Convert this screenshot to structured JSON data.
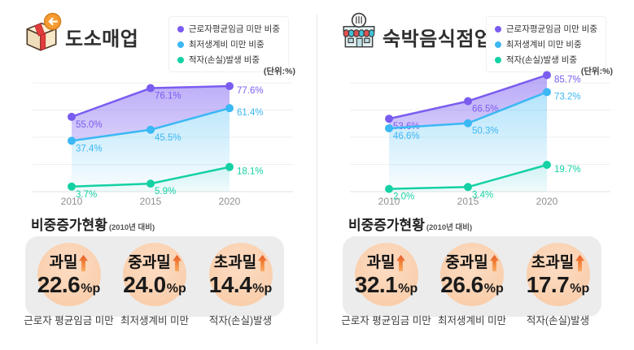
{
  "unit_label": "(단위:%)",
  "colors": {
    "purple": "#7b5cf0",
    "blue": "#3bb8f5",
    "green": "#14d1a4",
    "stat_circle_peach": "#fad2b2",
    "arrow_orange": "#e85a2c",
    "stats_box_gray": "#ececec"
  },
  "legend": [
    {
      "label": "근로자평균임금 미만 비중",
      "color": "#7b5cf0"
    },
    {
      "label": "최저생계비 미만 비중",
      "color": "#3bb8f5"
    },
    {
      "label": "적자(손실)발생 비중",
      "color": "#14d1a4"
    }
  ],
  "panels": [
    {
      "title": "도소매업",
      "icon": "package-return-icon",
      "section": {
        "title": "비중증가현황",
        "subtitle": "(2010년 대비)"
      },
      "stats": [
        {
          "label": "과밀",
          "value": "22.6",
          "unit": "%p",
          "caption": "근로자 평균임금 미만"
        },
        {
          "label": "중과밀",
          "value": "24.0",
          "unit": "%p",
          "caption": "최저생계비 미만"
        },
        {
          "label": "초과밀",
          "value": "14.4",
          "unit": "%p",
          "caption": "적자(손실)발생"
        }
      ]
    },
    {
      "title": "숙박음식점업",
      "icon": "storefront-icon",
      "section": {
        "title": "비중증가현황",
        "subtitle": "(2010년 대비)"
      },
      "stats": [
        {
          "label": "과밀",
          "value": "32.1",
          "unit": "%p",
          "caption": "근로자 평균임금 미만"
        },
        {
          "label": "중과밀",
          "value": "26.6",
          "unit": "%p",
          "caption": "최저생계비 미만"
        },
        {
          "label": "초과밀",
          "value": "17.7",
          "unit": "%p",
          "caption": "적자(손실)발생"
        }
      ]
    }
  ],
  "chart_data": [
    {
      "type": "area",
      "title": "도소매업",
      "unit": "%",
      "categories": [
        "2010",
        "2015",
        "2020"
      ],
      "series": [
        {
          "name": "근로자평균임금 미만 비중",
          "color": "#7b5cf0",
          "values": [
            55.0,
            76.1,
            77.6
          ],
          "labels": [
            "55.0%",
            "76.1%",
            "77.6%"
          ]
        },
        {
          "name": "최저생계비 미만 비중",
          "color": "#3bb8f5",
          "values": [
            37.4,
            45.5,
            61.4
          ],
          "labels": [
            "37.4%",
            "45.5%",
            "61.4%"
          ]
        },
        {
          "name": "적자(손실)발생 비중",
          "color": "#14d1a4",
          "values": [
            3.7,
            5.9,
            18.1
          ],
          "labels": [
            "3.7%",
            "5.9%",
            "18.1%"
          ]
        }
      ],
      "ylim": [
        0,
        100
      ],
      "gridlines": [
        0,
        20,
        40,
        60,
        80
      ],
      "grid": true,
      "legend_position": "top-right"
    },
    {
      "type": "area",
      "title": "숙박음식점업",
      "unit": "%",
      "categories": [
        "2010",
        "2015",
        "2020"
      ],
      "series": [
        {
          "name": "근로자평균임금 미만 비중",
          "color": "#7b5cf0",
          "values": [
            53.6,
            66.5,
            85.7
          ],
          "labels": [
            "53.6%",
            "66.5%",
            "85.7%"
          ]
        },
        {
          "name": "최저생계비 미만 비중",
          "color": "#3bb8f5",
          "values": [
            46.6,
            50.3,
            73.2
          ],
          "labels": [
            "46.6%",
            "50.3%",
            "73.2%"
          ]
        },
        {
          "name": "적자(손실)발생 비중",
          "color": "#14d1a4",
          "values": [
            2.0,
            3.4,
            19.7
          ],
          "labels": [
            "2.0%",
            "3.4%",
            "19.7%"
          ]
        }
      ],
      "ylim": [
        0,
        100
      ],
      "gridlines": [
        0,
        20,
        40,
        60,
        80
      ],
      "grid": true,
      "legend_position": "top-right"
    }
  ]
}
